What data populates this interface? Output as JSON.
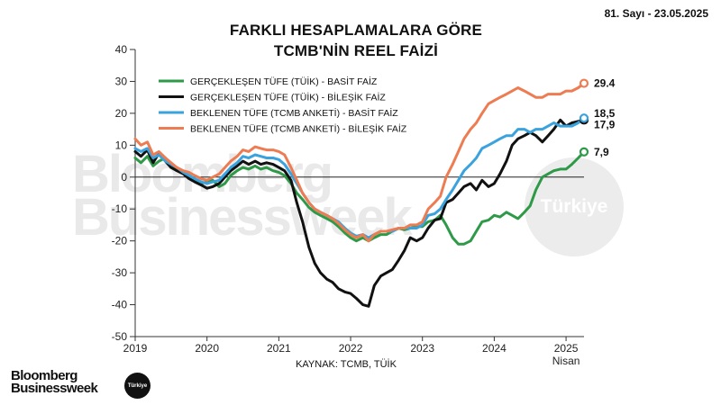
{
  "issue_label": "81. Sayı - 23.05.2025",
  "title_line1": "FARKLI HESAPLAMALARA GÖRE",
  "title_line2": "TCMB'NİN REEL FAİZİ",
  "watermark": {
    "line1": "Bloomberg",
    "line2": "Businessweek",
    "badge": "Türkiye"
  },
  "brand": {
    "line1": "Bloomberg",
    "line2": "Businessweek",
    "badge": "Türkiye"
  },
  "chart_data": {
    "type": "line",
    "title": "FARKLI HESAPLAMALARA GÖRE TCMB'NİN REEL FAİZİ",
    "source": "KAYNAK: TCMB, TÜİK",
    "x_ticks": [
      "2019",
      "2020",
      "2021",
      "2022",
      "2023",
      "2024",
      "2025"
    ],
    "x_sub_label": "Nisan",
    "ylim": [
      -50,
      40
    ],
    "y_ticks": [
      40,
      30,
      20,
      10,
      0,
      -10,
      -20,
      -30,
      -40,
      -50
    ],
    "grid": false,
    "legend_position": "top-left",
    "series": [
      {
        "name": "GERÇEKLEŞEN TÜFE (TÜİK) - BASİT FAİZ",
        "color": "#2e9a48",
        "end_label": "7,9",
        "x": [
          2019.0,
          2019.08,
          2019.17,
          2019.25,
          2019.33,
          2019.42,
          2019.5,
          2019.58,
          2019.67,
          2019.75,
          2019.83,
          2019.92,
          2020.0,
          2020.08,
          2020.17,
          2020.25,
          2020.33,
          2020.42,
          2020.5,
          2020.58,
          2020.67,
          2020.75,
          2020.83,
          2020.92,
          2021.0,
          2021.08,
          2021.17,
          2021.25,
          2021.33,
          2021.42,
          2021.5,
          2021.58,
          2021.67,
          2021.75,
          2021.83,
          2021.92,
          2022.0,
          2022.08,
          2022.17,
          2022.25,
          2022.33,
          2022.42,
          2022.5,
          2022.58,
          2022.67,
          2022.75,
          2022.83,
          2022.92,
          2023.0,
          2023.08,
          2023.17,
          2023.25,
          2023.33,
          2023.42,
          2023.5,
          2023.58,
          2023.67,
          2023.75,
          2023.83,
          2023.92,
          2024.0,
          2024.08,
          2024.17,
          2024.25,
          2024.33,
          2024.42,
          2024.5,
          2024.58,
          2024.67,
          2024.75,
          2024.83,
          2024.92,
          2025.0,
          2025.08,
          2025.17,
          2025.25
        ],
        "values": [
          6,
          4.5,
          6.5,
          3.5,
          5,
          6,
          3,
          2.5,
          1,
          0.5,
          -1,
          -2,
          -1.5,
          -1,
          -3,
          -2,
          0.5,
          2,
          3,
          2.5,
          3.5,
          2.5,
          3,
          2,
          1.5,
          0.5,
          -2,
          -5,
          -7,
          -9.5,
          -11,
          -12,
          -13,
          -14,
          -15.5,
          -17.5,
          -19,
          -20,
          -19,
          -20,
          -19,
          -18,
          -18,
          -17,
          -16,
          -16.5,
          -16,
          -15.5,
          -15.5,
          -14,
          -13.5,
          -12,
          -15,
          -19,
          -21,
          -21,
          -20,
          -17,
          -14,
          -13.5,
          -12,
          -12.5,
          -11,
          -12,
          -13,
          -11,
          -9,
          -4,
          0,
          1,
          2,
          2.5,
          2.5,
          4,
          6,
          7.9
        ]
      },
      {
        "name": "GERÇEKLEŞEN TÜFE (TÜİK) - BİLEŞİK FAİZ",
        "color": "#111111",
        "end_label": "17,9",
        "x": [
          2019.0,
          2019.08,
          2019.17,
          2019.25,
          2019.33,
          2019.42,
          2019.5,
          2019.58,
          2019.67,
          2019.75,
          2019.83,
          2019.92,
          2020.0,
          2020.08,
          2020.17,
          2020.25,
          2020.33,
          2020.42,
          2020.5,
          2020.58,
          2020.67,
          2020.75,
          2020.83,
          2020.92,
          2021.0,
          2021.08,
          2021.17,
          2021.25,
          2021.33,
          2021.42,
          2021.5,
          2021.58,
          2021.67,
          2021.75,
          2021.83,
          2021.92,
          2022.0,
          2022.08,
          2022.17,
          2022.25,
          2022.33,
          2022.42,
          2022.5,
          2022.58,
          2022.67,
          2022.75,
          2022.83,
          2022.92,
          2023.0,
          2023.08,
          2023.17,
          2023.25,
          2023.33,
          2023.42,
          2023.5,
          2023.58,
          2023.67,
          2023.75,
          2023.83,
          2023.92,
          2024.0,
          2024.08,
          2024.17,
          2024.25,
          2024.33,
          2024.42,
          2024.5,
          2024.58,
          2024.67,
          2024.75,
          2024.83,
          2024.92,
          2025.0,
          2025.08,
          2025.17,
          2025.25
        ],
        "values": [
          8,
          6.5,
          8.5,
          4.5,
          7.5,
          5,
          3,
          2,
          1,
          -0.5,
          -1.5,
          -2.5,
          -3.5,
          -3,
          -2,
          0,
          2,
          3.5,
          5,
          4,
          5,
          4,
          4.5,
          4,
          3,
          2,
          -1,
          -8,
          -14,
          -22,
          -27,
          -30,
          -32,
          -33,
          -35,
          -36,
          -36.5,
          -38,
          -40,
          -40.5,
          -34,
          -31,
          -30,
          -29,
          -26,
          -23,
          -19,
          -20,
          -19,
          -16,
          -13.5,
          -13,
          -8,
          -7,
          -5,
          -3,
          -2,
          -4,
          -1,
          -3,
          -2,
          1,
          5,
          10,
          12,
          13,
          14,
          13,
          11,
          13,
          15,
          17.9,
          16,
          17,
          17.5,
          17.9
        ]
      },
      {
        "name": "BEKLENEN TÜFE (TCMB ANKETİ) - BASİT FAİZ",
        "color": "#3aa3dd",
        "end_label": "18,5",
        "x": [
          2019.0,
          2019.08,
          2019.17,
          2019.25,
          2019.33,
          2019.42,
          2019.5,
          2019.58,
          2019.67,
          2019.75,
          2019.83,
          2019.92,
          2020.0,
          2020.08,
          2020.17,
          2020.25,
          2020.33,
          2020.42,
          2020.5,
          2020.58,
          2020.67,
          2020.75,
          2020.83,
          2020.92,
          2021.0,
          2021.08,
          2021.17,
          2021.25,
          2021.33,
          2021.42,
          2021.5,
          2021.58,
          2021.67,
          2021.75,
          2021.83,
          2021.92,
          2022.0,
          2022.08,
          2022.17,
          2022.25,
          2022.33,
          2022.42,
          2022.5,
          2022.58,
          2022.67,
          2022.75,
          2022.83,
          2022.92,
          2023.0,
          2023.08,
          2023.17,
          2023.25,
          2023.33,
          2023.42,
          2023.5,
          2023.58,
          2023.67,
          2023.75,
          2023.83,
          2023.92,
          2024.0,
          2024.08,
          2024.17,
          2024.25,
          2024.33,
          2024.42,
          2024.5,
          2024.58,
          2024.67,
          2024.75,
          2024.83,
          2024.92,
          2025.0,
          2025.08,
          2025.17,
          2025.25
        ],
        "values": [
          9,
          8,
          9,
          6,
          7,
          5,
          4,
          3,
          1.5,
          0.5,
          -0.5,
          -1.5,
          -2,
          -1.5,
          -1,
          1,
          3,
          4.5,
          6.5,
          6,
          7,
          6.5,
          6,
          6,
          5.5,
          4,
          1,
          -2,
          -5,
          -8,
          -10,
          -11,
          -12,
          -13,
          -14,
          -16,
          -17.5,
          -18.5,
          -18,
          -19,
          -18,
          -17,
          -17,
          -17,
          -16,
          -16,
          -16,
          -16,
          -15,
          -12,
          -11.5,
          -10,
          -7,
          -4,
          -1,
          2,
          4,
          6,
          9,
          10,
          11,
          12,
          13,
          13,
          15,
          15,
          14,
          15,
          15,
          16,
          17,
          16,
          16,
          16,
          17,
          18.5
        ]
      },
      {
        "name": "BEKLENEN TÜFE (TCMB ANKETİ) - BİLEŞİK FAİZ",
        "color": "#ee7c52",
        "end_label": "29.4",
        "x": [
          2019.0,
          2019.08,
          2019.17,
          2019.25,
          2019.33,
          2019.42,
          2019.5,
          2019.58,
          2019.67,
          2019.75,
          2019.83,
          2019.92,
          2020.0,
          2020.08,
          2020.17,
          2020.25,
          2020.33,
          2020.42,
          2020.5,
          2020.58,
          2020.67,
          2020.75,
          2020.83,
          2020.92,
          2021.0,
          2021.08,
          2021.17,
          2021.25,
          2021.33,
          2021.42,
          2021.5,
          2021.58,
          2021.67,
          2021.75,
          2021.83,
          2021.92,
          2022.0,
          2022.08,
          2022.17,
          2022.25,
          2022.33,
          2022.42,
          2022.5,
          2022.58,
          2022.67,
          2022.75,
          2022.83,
          2022.92,
          2023.0,
          2023.08,
          2023.17,
          2023.25,
          2023.33,
          2023.42,
          2023.5,
          2023.58,
          2023.67,
          2023.75,
          2023.83,
          2023.92,
          2024.0,
          2024.08,
          2024.17,
          2024.25,
          2024.33,
          2024.42,
          2024.5,
          2024.58,
          2024.67,
          2024.75,
          2024.83,
          2024.92,
          2025.0,
          2025.08,
          2025.17,
          2025.25
        ],
        "values": [
          12,
          10,
          11,
          7,
          8,
          6,
          4.5,
          3,
          2,
          1.5,
          0.5,
          -0.5,
          -1,
          0,
          1,
          3,
          5,
          6.5,
          8.5,
          8,
          9.5,
          9,
          8.5,
          8.5,
          8,
          7,
          3,
          -1,
          -5,
          -8,
          -10,
          -11,
          -12,
          -13,
          -14.5,
          -16.5,
          -18,
          -19,
          -18,
          -20,
          -18,
          -17,
          -17,
          -16.5,
          -16,
          -16,
          -15,
          -15,
          -14,
          -10,
          -8,
          -6,
          0,
          4,
          8,
          12,
          15,
          17,
          20,
          23,
          24,
          25,
          26,
          27,
          28,
          27,
          26,
          25,
          25,
          26,
          26,
          26,
          27,
          27,
          28,
          29.4
        ]
      }
    ]
  }
}
